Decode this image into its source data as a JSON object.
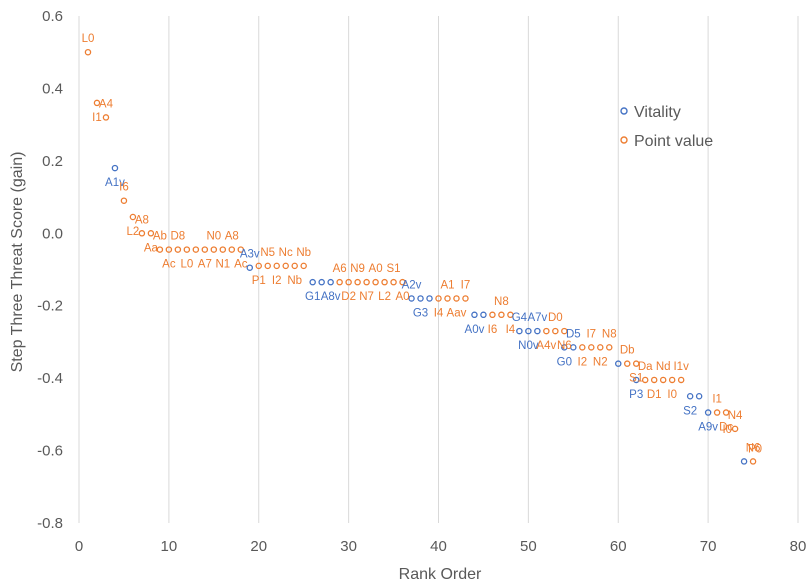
{
  "chart_data": {
    "type": "scatter",
    "title": "",
    "xlabel": "Rank Order",
    "ylabel": "Step Three Threat Score (gain)",
    "xlim": [
      0,
      80
    ],
    "ylim": [
      -0.8,
      0.6
    ],
    "x_ticks": [
      "0",
      "10",
      "20",
      "30",
      "40",
      "50",
      "60",
      "70",
      "80"
    ],
    "y_ticks": [
      "0.6",
      "0.4",
      "0.2",
      "0.0",
      "-0.2",
      "-0.4",
      "-0.6",
      "-0.8"
    ],
    "grid": "vertical",
    "legend_position": "right",
    "colors": {
      "vitality": "#4472C4",
      "point_value": "#ED7D31",
      "axis_text": "#595959",
      "grid": "#d9d9d9"
    },
    "series": [
      {
        "name": "Vitality",
        "points": [
          {
            "x": 4,
            "y": 0.18,
            "label": "A1v"
          },
          {
            "x": 19,
            "y": -0.095,
            "label": "A3v"
          },
          {
            "x": 26,
            "y": -0.135,
            "label": "G1"
          },
          {
            "x": 27,
            "y": -0.135,
            "label": ""
          },
          {
            "x": 28,
            "y": -0.135,
            "label": "A8v"
          },
          {
            "x": 37,
            "y": -0.18,
            "label": "A2v"
          },
          {
            "x": 38,
            "y": -0.18,
            "label": "G3"
          },
          {
            "x": 39,
            "y": -0.18,
            "label": ""
          },
          {
            "x": 44,
            "y": -0.225,
            "label": "A0v"
          },
          {
            "x": 45,
            "y": -0.225,
            "label": ""
          },
          {
            "x": 49,
            "y": -0.27,
            "label": "G4"
          },
          {
            "x": 50,
            "y": -0.27,
            "label": "N0v"
          },
          {
            "x": 51,
            "y": -0.27,
            "label": "A7v"
          },
          {
            "x": 54,
            "y": -0.315,
            "label": "G0"
          },
          {
            "x": 55,
            "y": -0.315,
            "label": "D5"
          },
          {
            "x": 60,
            "y": -0.36,
            "label": ""
          },
          {
            "x": 62,
            "y": -0.405,
            "label": "P3"
          },
          {
            "x": 68,
            "y": -0.45,
            "label": "S2"
          },
          {
            "x": 69,
            "y": -0.45,
            "label": ""
          },
          {
            "x": 70,
            "y": -0.495,
            "label": "A9v"
          },
          {
            "x": 74,
            "y": -0.63,
            "label": ""
          }
        ]
      },
      {
        "name": "Point value",
        "points": [
          {
            "x": 1,
            "y": 0.5,
            "label": "L0"
          },
          {
            "x": 2,
            "y": 0.36,
            "label": "I1"
          },
          {
            "x": 3,
            "y": 0.32,
            "label": "A4"
          },
          {
            "x": 5,
            "y": 0.09,
            "label": "I6"
          },
          {
            "x": 6,
            "y": 0.045,
            "label": "L2"
          },
          {
            "x": 7,
            "y": 0.0,
            "label": "A8"
          },
          {
            "x": 8,
            "y": 0.0,
            "label": "Aa"
          },
          {
            "x": 9,
            "y": -0.045,
            "label": "Ab"
          },
          {
            "x": 10,
            "y": -0.045,
            "label": "Ac"
          },
          {
            "x": 11,
            "y": -0.045,
            "label": "D8"
          },
          {
            "x": 12,
            "y": -0.045,
            "label": "L0"
          },
          {
            "x": 13,
            "y": -0.045,
            "label": ""
          },
          {
            "x": 14,
            "y": -0.045,
            "label": "A7"
          },
          {
            "x": 15,
            "y": -0.045,
            "label": "N0"
          },
          {
            "x": 16,
            "y": -0.045,
            "label": "N1"
          },
          {
            "x": 17,
            "y": -0.045,
            "label": "A8"
          },
          {
            "x": 18,
            "y": -0.045,
            "label": "Ac"
          },
          {
            "x": 20,
            "y": -0.09,
            "label": "P1"
          },
          {
            "x": 21,
            "y": -0.09,
            "label": "N5"
          },
          {
            "x": 22,
            "y": -0.09,
            "label": "I2"
          },
          {
            "x": 23,
            "y": -0.09,
            "label": "Nc"
          },
          {
            "x": 24,
            "y": -0.09,
            "label": "Nb"
          },
          {
            "x": 25,
            "y": -0.09,
            "label": "Nb"
          },
          {
            "x": 29,
            "y": -0.135,
            "label": "A6"
          },
          {
            "x": 30,
            "y": -0.135,
            "label": "D2"
          },
          {
            "x": 31,
            "y": -0.135,
            "label": "N9"
          },
          {
            "x": 32,
            "y": -0.135,
            "label": "N7"
          },
          {
            "x": 33,
            "y": -0.135,
            "label": "A0"
          },
          {
            "x": 34,
            "y": -0.135,
            "label": "L2"
          },
          {
            "x": 35,
            "y": -0.135,
            "label": "S1"
          },
          {
            "x": 36,
            "y": -0.135,
            "label": "A0"
          },
          {
            "x": 40,
            "y": -0.18,
            "label": "I4"
          },
          {
            "x": 41,
            "y": -0.18,
            "label": "A1"
          },
          {
            "x": 42,
            "y": -0.18,
            "label": "Aav"
          },
          {
            "x": 43,
            "y": -0.18,
            "label": "I7"
          },
          {
            "x": 46,
            "y": -0.225,
            "label": "I6"
          },
          {
            "x": 47,
            "y": -0.225,
            "label": "N8"
          },
          {
            "x": 48,
            "y": -0.225,
            "label": "I4"
          },
          {
            "x": 52,
            "y": -0.27,
            "label": "A4v"
          },
          {
            "x": 53,
            "y": -0.27,
            "label": "D0"
          },
          {
            "x": 54,
            "y": -0.27,
            "label": "N6"
          },
          {
            "x": 56,
            "y": -0.315,
            "label": "I2"
          },
          {
            "x": 57,
            "y": -0.315,
            "label": "I7"
          },
          {
            "x": 58,
            "y": -0.315,
            "label": "N2"
          },
          {
            "x": 59,
            "y": -0.315,
            "label": "N8"
          },
          {
            "x": 61,
            "y": -0.36,
            "label": "Db"
          },
          {
            "x": 62,
            "y": -0.36,
            "label": "S1"
          },
          {
            "x": 63,
            "y": -0.405,
            "label": "Da"
          },
          {
            "x": 64,
            "y": -0.405,
            "label": "D1"
          },
          {
            "x": 65,
            "y": -0.405,
            "label": "Nd"
          },
          {
            "x": 66,
            "y": -0.405,
            "label": "I0"
          },
          {
            "x": 67,
            "y": -0.405,
            "label": "I1v"
          },
          {
            "x": 71,
            "y": -0.495,
            "label": "I1"
          },
          {
            "x": 72,
            "y": -0.495,
            "label": "Dc"
          },
          {
            "x": 73,
            "y": -0.54,
            "label": "N4"
          },
          {
            "x": 75,
            "y": -0.63,
            "label": "N6"
          }
        ]
      }
    ],
    "annotations": [
      "I0",
      "P0"
    ]
  }
}
